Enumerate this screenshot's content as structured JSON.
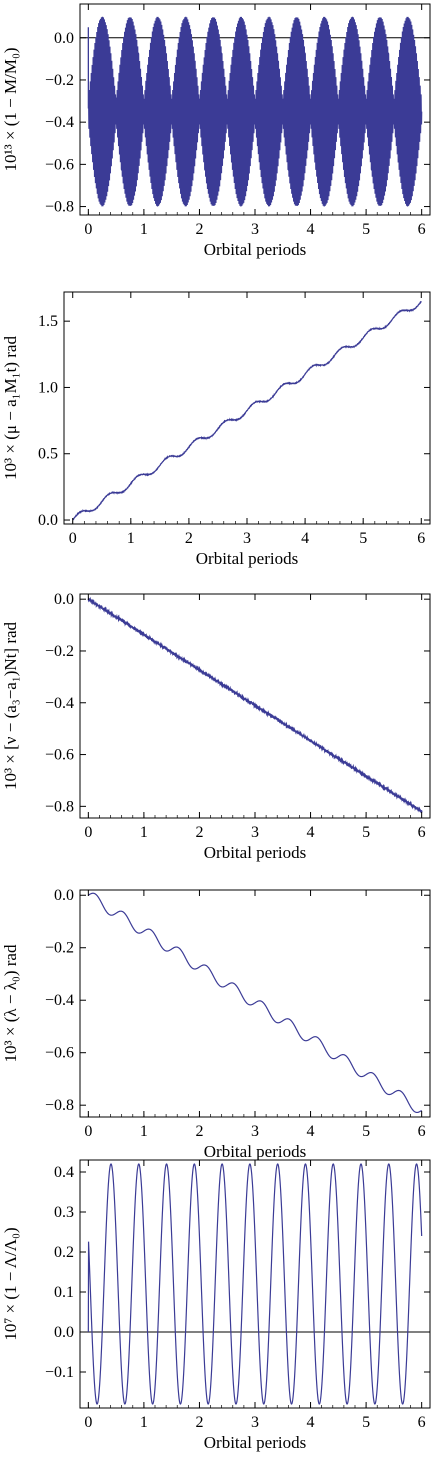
{
  "chart_data": [
    {
      "type": "line",
      "style": "dense-oscillation",
      "color": "#3b3b96",
      "xlabel": "Orbital periods",
      "ylabel": "10¹³ × (1 − M/M₀)",
      "xlim": [
        -0.15,
        6.15
      ],
      "ylim": [
        -0.84,
        0.16
      ],
      "xticks": [
        0,
        1,
        2,
        3,
        4,
        5,
        6
      ],
      "yticks": [
        0.0,
        -0.2,
        -0.4,
        -0.6,
        -0.8
      ],
      "ytick_labels": [
        "0.0",
        "−0.2",
        "−0.4",
        "−0.6",
        "−0.8"
      ],
      "zero_line": true,
      "series": [
        {
          "center": -0.35,
          "amplitude_min": 0.05,
          "amplitude_max": 0.45,
          "envelope_cycles_per_period": 2,
          "carrier_cycles_per_period": 60
        }
      ]
    },
    {
      "type": "line",
      "style": "staircase-ramp",
      "color": "#3b3b96",
      "xlabel": "Orbital periods",
      "ylabel": "10³ × (μ − a₁M₁t) rad",
      "xlim": [
        -0.15,
        6.15
      ],
      "ylim": [
        -0.03,
        1.72
      ],
      "xticks": [
        0,
        1,
        2,
        3,
        4,
        5,
        6
      ],
      "yticks": [
        0.0,
        0.5,
        1.0,
        1.5
      ],
      "ytick_labels": [
        "0.0",
        "0.5",
        "1.0",
        "1.5"
      ],
      "zero_line": false,
      "series": [
        {
          "start": 0.0,
          "end": 1.65,
          "wiggle_amplitude": 0.025,
          "wiggle_cycles_per_period": 2,
          "noise": 0.006
        }
      ]
    },
    {
      "type": "line",
      "style": "noisy-ramp",
      "color": "#3b3b96",
      "xlabel": "Orbital periods",
      "ylabel": "10³ × [ν − (a₃−a₁)Nt] rad",
      "xlim": [
        -0.15,
        6.15
      ],
      "ylim": [
        -0.845,
        0.02
      ],
      "xticks": [
        0,
        1,
        2,
        3,
        4,
        5,
        6
      ],
      "yticks": [
        0.0,
        -0.2,
        -0.4,
        -0.6,
        -0.8
      ],
      "ytick_labels": [
        "0.0",
        "−0.2",
        "−0.4",
        "−0.6",
        "−0.8"
      ],
      "zero_line": false,
      "series": [
        {
          "start": 0.0,
          "end": -0.82,
          "noise": 0.004
        }
      ]
    },
    {
      "type": "line",
      "style": "staircase-ramp",
      "color": "#3b3b96",
      "xlabel": "Orbital periods",
      "ylabel": "10³ × (λ − λ₀) rad",
      "xlim": [
        -0.15,
        6.15
      ],
      "ylim": [
        -0.845,
        0.02
      ],
      "xticks": [
        0,
        1,
        2,
        3,
        4,
        5,
        6
      ],
      "yticks": [
        0.0,
        -0.2,
        -0.4,
        -0.6,
        -0.8
      ],
      "ytick_labels": [
        "0.0",
        "−0.2",
        "−0.4",
        "−0.6",
        "−0.8"
      ],
      "zero_line": false,
      "series": [
        {
          "start": 0.0,
          "end": -0.82,
          "wiggle_amplitude": 0.022,
          "wiggle_cycles_per_period": 2,
          "noise": 0.0
        }
      ]
    },
    {
      "type": "line",
      "style": "sinusoid",
      "color": "#3b3b96",
      "xlabel": "Orbital periods",
      "ylabel": "10⁷ × (1 − Λ/Λ₀)",
      "xlim": [
        -0.15,
        6.15
      ],
      "ylim": [
        -0.19,
        0.43
      ],
      "xticks": [
        0,
        1,
        2,
        3,
        4,
        5,
        6
      ],
      "yticks": [
        0.4,
        0.3,
        0.2,
        0.1,
        0.0,
        -0.1
      ],
      "ytick_labels": [
        "0.4",
        "0.3",
        "0.2",
        "0.1",
        "0.0",
        "−0.1"
      ],
      "zero_line": true,
      "series": [
        {
          "center": 0.12,
          "amplitude": 0.3,
          "cycles_per_period": 2,
          "starts_at_zero": true
        }
      ]
    }
  ]
}
